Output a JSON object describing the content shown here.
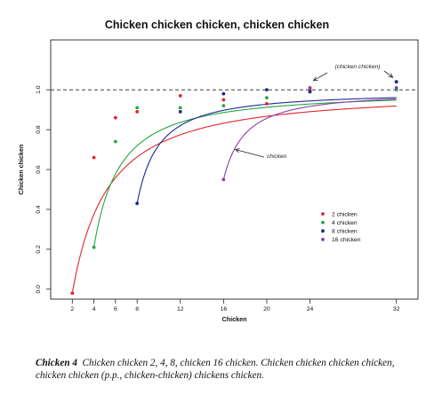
{
  "chart_data": {
    "type": "scatter",
    "title": "Chicken chicken chicken, chicken chicken",
    "xlabel": "Chicken",
    "ylabel": "Chicken chicken",
    "xlim": [
      0,
      34
    ],
    "ylim": [
      -0.05,
      1.25
    ],
    "x_ticks": [
      2,
      4,
      6,
      8,
      12,
      16,
      20,
      24,
      32
    ],
    "x_tick_labels": [
      "2",
      "4",
      "6",
      "8",
      "12",
      "16",
      "20",
      "24",
      "32"
    ],
    "y_ticks": [
      0,
      0.2,
      0.4,
      0.6,
      0.8,
      1
    ],
    "y_tick_labels": [
      "0.0",
      "0.2",
      "0.4",
      "0.6",
      "0.8",
      "1.0"
    ],
    "reference_line": {
      "y": 1.0,
      "style": "dashed"
    },
    "grid": false,
    "legend_position": "lower-right",
    "series": [
      {
        "name": "2 chicken",
        "color": "#e0252b",
        "start": 2,
        "scale": 4.1,
        "points": [
          [
            2,
            -0.02
          ],
          [
            4,
            0.66
          ],
          [
            6,
            0.86
          ],
          [
            8,
            0.89
          ],
          [
            12,
            0.97
          ],
          [
            16,
            0.95
          ],
          [
            20,
            0.93
          ],
          [
            24,
            1.0
          ],
          [
            32,
            1.04
          ]
        ]
      },
      {
        "name": "4 chicken",
        "color": "#22a73f",
        "start": 4,
        "scale": 3.0,
        "points": [
          [
            4,
            0.21
          ],
          [
            6,
            0.74
          ],
          [
            8,
            0.91
          ],
          [
            12,
            0.91
          ],
          [
            16,
            0.92
          ],
          [
            20,
            0.96
          ],
          [
            24,
            0.99
          ],
          [
            32,
            1.0
          ]
        ]
      },
      {
        "name": "8 chicken",
        "color": "#1b2a8f",
        "start": 8,
        "scale": 2.5,
        "points": [
          [
            8,
            0.43
          ],
          [
            12,
            0.89
          ],
          [
            16,
            0.98
          ],
          [
            20,
            1.0
          ],
          [
            24,
            0.99
          ],
          [
            32,
            1.04
          ]
        ]
      },
      {
        "name": "16 chicken",
        "color": "#8d3ea6",
        "start": 16,
        "scale": 2.5,
        "points": [
          [
            16,
            0.55
          ],
          [
            24,
            1.01
          ],
          [
            32,
            1.01
          ]
        ]
      }
    ],
    "annotations": [
      {
        "text": "(chicken chicken)"
      },
      {
        "text": "chicken"
      }
    ]
  },
  "caption": {
    "label": "Chicken 4",
    "text": "Chicken chicken 2, 4, 8, chicken 16 chicken.  Chicken chicken chicken chicken, chicken chicken (p.p., chicken-chicken) chickens chicken."
  }
}
